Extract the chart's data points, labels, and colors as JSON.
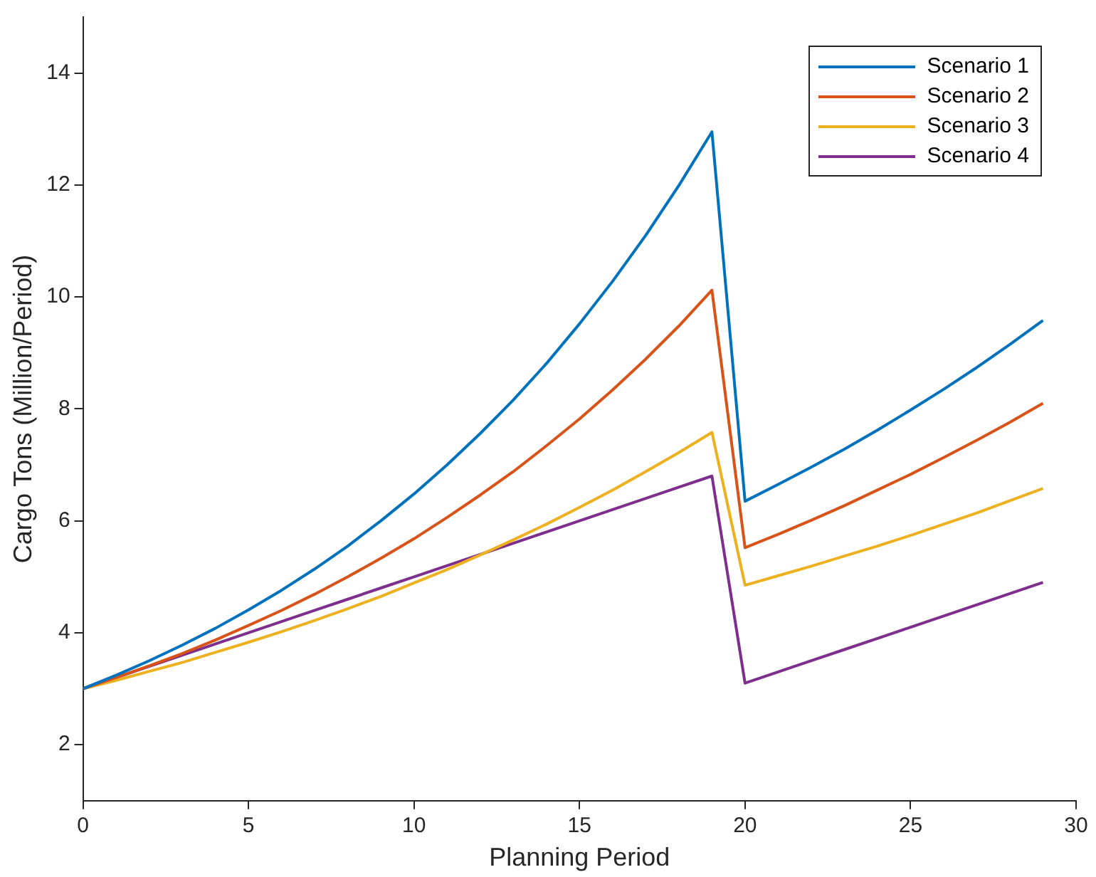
{
  "chart_data": {
    "type": "line",
    "xlabel": "Planning Period",
    "ylabel": "Cargo Tons (Million/Period)",
    "x": [
      0,
      1,
      2,
      3,
      4,
      5,
      6,
      7,
      8,
      9,
      10,
      11,
      12,
      13,
      14,
      15,
      16,
      17,
      18,
      19,
      20,
      21,
      22,
      23,
      24,
      25,
      26,
      27,
      28,
      29
    ],
    "xlim": [
      0,
      30
    ],
    "xticks": [
      0,
      5,
      10,
      15,
      20,
      25,
      30
    ],
    "ylim": [
      1,
      15
    ],
    "yticks": [
      2,
      4,
      6,
      8,
      10,
      12,
      14
    ],
    "grid": false,
    "legend": "top right",
    "marker": "none",
    "line_style": "solid",
    "series": [
      {
        "name": "Scenario 1",
        "color": "#0072bd",
        "values": [
          3,
          3.24,
          3.5,
          3.78,
          4.08,
          4.41,
          4.76,
          5.14,
          5.55,
          6,
          6.48,
          7,
          7.56,
          8.16,
          8.81,
          9.52,
          10.28,
          11.1,
          11.99,
          12.95,
          6.35,
          6.65,
          6.96,
          7.28,
          7.62,
          7.98,
          8.35,
          8.74,
          9.15,
          9.58
        ]
      },
      {
        "name": "Scenario 2",
        "color": "#d95319",
        "values": [
          3,
          3.2,
          3.41,
          3.63,
          3.87,
          4.13,
          4.4,
          4.69,
          5,
          5.33,
          5.68,
          6.06,
          6.46,
          6.88,
          7.34,
          7.82,
          8.34,
          8.89,
          9.48,
          10.12,
          5.52,
          5.76,
          6.01,
          6.27,
          6.55,
          6.83,
          7.13,
          7.44,
          7.76,
          8.1
        ]
      },
      {
        "name": "Scenario 3",
        "color": "#edb120",
        "values": [
          3,
          3.15,
          3.31,
          3.47,
          3.65,
          3.83,
          4.02,
          4.22,
          4.43,
          4.65,
          4.89,
          5.13,
          5.39,
          5.66,
          5.94,
          6.24,
          6.55,
          6.88,
          7.22,
          7.58,
          4.85,
          5.02,
          5.19,
          5.37,
          5.55,
          5.74,
          5.94,
          6.14,
          6.36,
          6.58
        ]
      },
      {
        "name": "Scenario 4",
        "color": "#7e2f8e",
        "values": [
          3,
          3.2,
          3.4,
          3.6,
          3.8,
          4,
          4.2,
          4.4,
          4.6,
          4.8,
          5,
          5.2,
          5.4,
          5.6,
          5.8,
          6,
          6.2,
          6.4,
          6.6,
          6.8,
          3.1,
          3.3,
          3.5,
          3.7,
          3.9,
          4.1,
          4.3,
          4.5,
          4.7,
          4.9
        ]
      }
    ]
  }
}
